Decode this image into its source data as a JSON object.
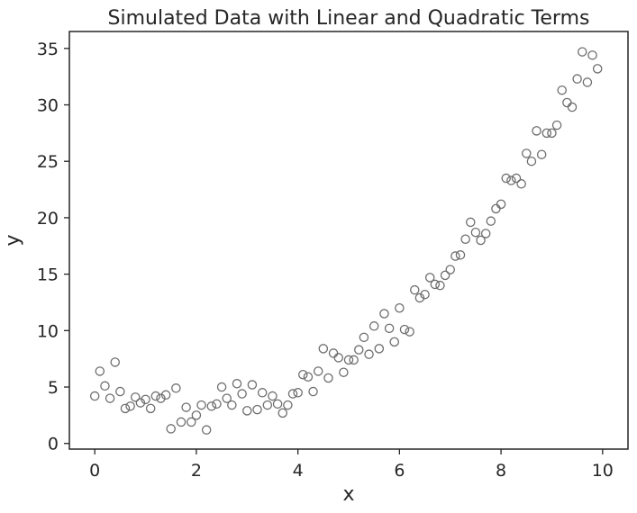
{
  "chart_data": {
    "type": "scatter",
    "title": "Simulated Data with Linear and Quadratic Terms",
    "xlabel": "x",
    "ylabel": "y",
    "xlim": [
      -0.5,
      10.5
    ],
    "ylim": [
      -0.5,
      36.5
    ],
    "xticks": [
      0,
      2,
      4,
      6,
      8,
      10
    ],
    "yticks": [
      0,
      5,
      10,
      15,
      20,
      25,
      30,
      35
    ],
    "grid": false,
    "marker": "hollow-circle",
    "marker_color": "#6e6e6e",
    "points": [
      [
        0.0,
        4.2
      ],
      [
        0.1,
        6.4
      ],
      [
        0.2,
        5.1
      ],
      [
        0.3,
        4.0
      ],
      [
        0.4,
        7.2
      ],
      [
        0.5,
        4.6
      ],
      [
        0.6,
        3.1
      ],
      [
        0.7,
        3.3
      ],
      [
        0.8,
        4.1
      ],
      [
        0.9,
        3.6
      ],
      [
        1.0,
        3.9
      ],
      [
        1.1,
        3.1
      ],
      [
        1.2,
        4.2
      ],
      [
        1.3,
        4.0
      ],
      [
        1.4,
        4.3
      ],
      [
        1.5,
        1.3
      ],
      [
        1.6,
        4.9
      ],
      [
        1.7,
        1.9
      ],
      [
        1.8,
        3.2
      ],
      [
        1.9,
        1.9
      ],
      [
        2.0,
        2.5
      ],
      [
        2.1,
        3.4
      ],
      [
        2.2,
        1.2
      ],
      [
        2.3,
        3.3
      ],
      [
        2.4,
        3.5
      ],
      [
        2.5,
        5.0
      ],
      [
        2.6,
        4.0
      ],
      [
        2.7,
        3.4
      ],
      [
        2.8,
        5.3
      ],
      [
        2.9,
        4.4
      ],
      [
        3.0,
        2.9
      ],
      [
        3.1,
        5.2
      ],
      [
        3.2,
        3.0
      ],
      [
        3.3,
        4.5
      ],
      [
        3.4,
        3.4
      ],
      [
        3.5,
        4.2
      ],
      [
        3.6,
        3.5
      ],
      [
        3.7,
        2.7
      ],
      [
        3.8,
        3.4
      ],
      [
        3.9,
        4.4
      ],
      [
        4.0,
        4.5
      ],
      [
        4.1,
        6.1
      ],
      [
        4.2,
        5.9
      ],
      [
        4.3,
        4.6
      ],
      [
        4.4,
        6.4
      ],
      [
        4.5,
        8.4
      ],
      [
        4.6,
        5.8
      ],
      [
        4.7,
        8.0
      ],
      [
        4.8,
        7.6
      ],
      [
        4.9,
        6.3
      ],
      [
        5.0,
        7.4
      ],
      [
        5.1,
        7.4
      ],
      [
        5.2,
        8.3
      ],
      [
        5.3,
        9.4
      ],
      [
        5.4,
        7.9
      ],
      [
        5.5,
        10.4
      ],
      [
        5.6,
        8.4
      ],
      [
        5.7,
        11.5
      ],
      [
        5.8,
        10.2
      ],
      [
        5.9,
        9.0
      ],
      [
        6.0,
        12.0
      ],
      [
        6.1,
        10.1
      ],
      [
        6.2,
        9.9
      ],
      [
        6.3,
        13.6
      ],
      [
        6.4,
        12.9
      ],
      [
        6.5,
        13.2
      ],
      [
        6.6,
        14.7
      ],
      [
        6.7,
        14.1
      ],
      [
        6.8,
        14.0
      ],
      [
        6.9,
        14.9
      ],
      [
        7.0,
        15.4
      ],
      [
        7.1,
        16.6
      ],
      [
        7.2,
        16.7
      ],
      [
        7.3,
        18.1
      ],
      [
        7.4,
        19.6
      ],
      [
        7.5,
        18.7
      ],
      [
        7.6,
        18.0
      ],
      [
        7.7,
        18.6
      ],
      [
        7.8,
        19.7
      ],
      [
        7.9,
        20.8
      ],
      [
        8.0,
        21.2
      ],
      [
        8.1,
        23.5
      ],
      [
        8.2,
        23.3
      ],
      [
        8.3,
        23.5
      ],
      [
        8.4,
        23.0
      ],
      [
        8.5,
        25.7
      ],
      [
        8.6,
        25.0
      ],
      [
        8.7,
        27.7
      ],
      [
        8.8,
        25.6
      ],
      [
        8.9,
        27.5
      ],
      [
        9.0,
        27.5
      ],
      [
        9.1,
        28.2
      ],
      [
        9.2,
        31.3
      ],
      [
        9.3,
        30.2
      ],
      [
        9.4,
        29.8
      ],
      [
        9.5,
        32.3
      ],
      [
        9.6,
        34.7
      ],
      [
        9.7,
        32.0
      ],
      [
        9.8,
        34.4
      ],
      [
        9.9,
        33.2
      ]
    ]
  }
}
